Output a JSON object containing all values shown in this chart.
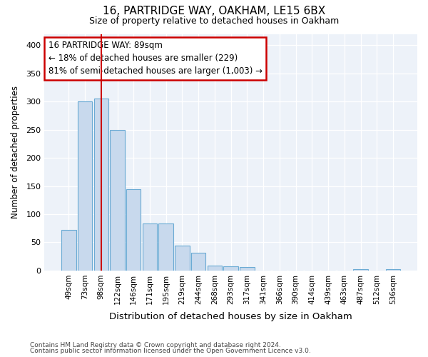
{
  "title1": "16, PARTRIDGE WAY, OAKHAM, LE15 6BX",
  "title2": "Size of property relative to detached houses in Oakham",
  "xlabel": "Distribution of detached houses by size in Oakham",
  "ylabel": "Number of detached properties",
  "categories": [
    "49sqm",
    "73sqm",
    "98sqm",
    "122sqm",
    "146sqm",
    "171sqm",
    "195sqm",
    "219sqm",
    "244sqm",
    "268sqm",
    "293sqm",
    "317sqm",
    "341sqm",
    "366sqm",
    "390sqm",
    "414sqm",
    "439sqm",
    "463sqm",
    "487sqm",
    "512sqm",
    "536sqm"
  ],
  "values": [
    72,
    300,
    305,
    249,
    144,
    83,
    83,
    44,
    32,
    9,
    7,
    6,
    0,
    0,
    0,
    0,
    0,
    0,
    2,
    0,
    2
  ],
  "bar_color": "#c8d9ed",
  "bar_edge_color": "#6aaad4",
  "vline_x": 2,
  "vline_color": "#cc0000",
  "annotation_text": "16 PARTRIDGE WAY: 89sqm\n← 18% of detached houses are smaller (229)\n81% of semi-detached houses are larger (1,003) →",
  "annotation_box_color": "#ffffff",
  "annotation_box_edge": "#cc0000",
  "ylim": [
    0,
    420
  ],
  "yticks": [
    0,
    50,
    100,
    150,
    200,
    250,
    300,
    350,
    400
  ],
  "footer1": "Contains HM Land Registry data © Crown copyright and database right 2024.",
  "footer2": "Contains public sector information licensed under the Open Government Licence v3.0.",
  "bg_color": "#ffffff",
  "plot_bg_color": "#edf2f9"
}
